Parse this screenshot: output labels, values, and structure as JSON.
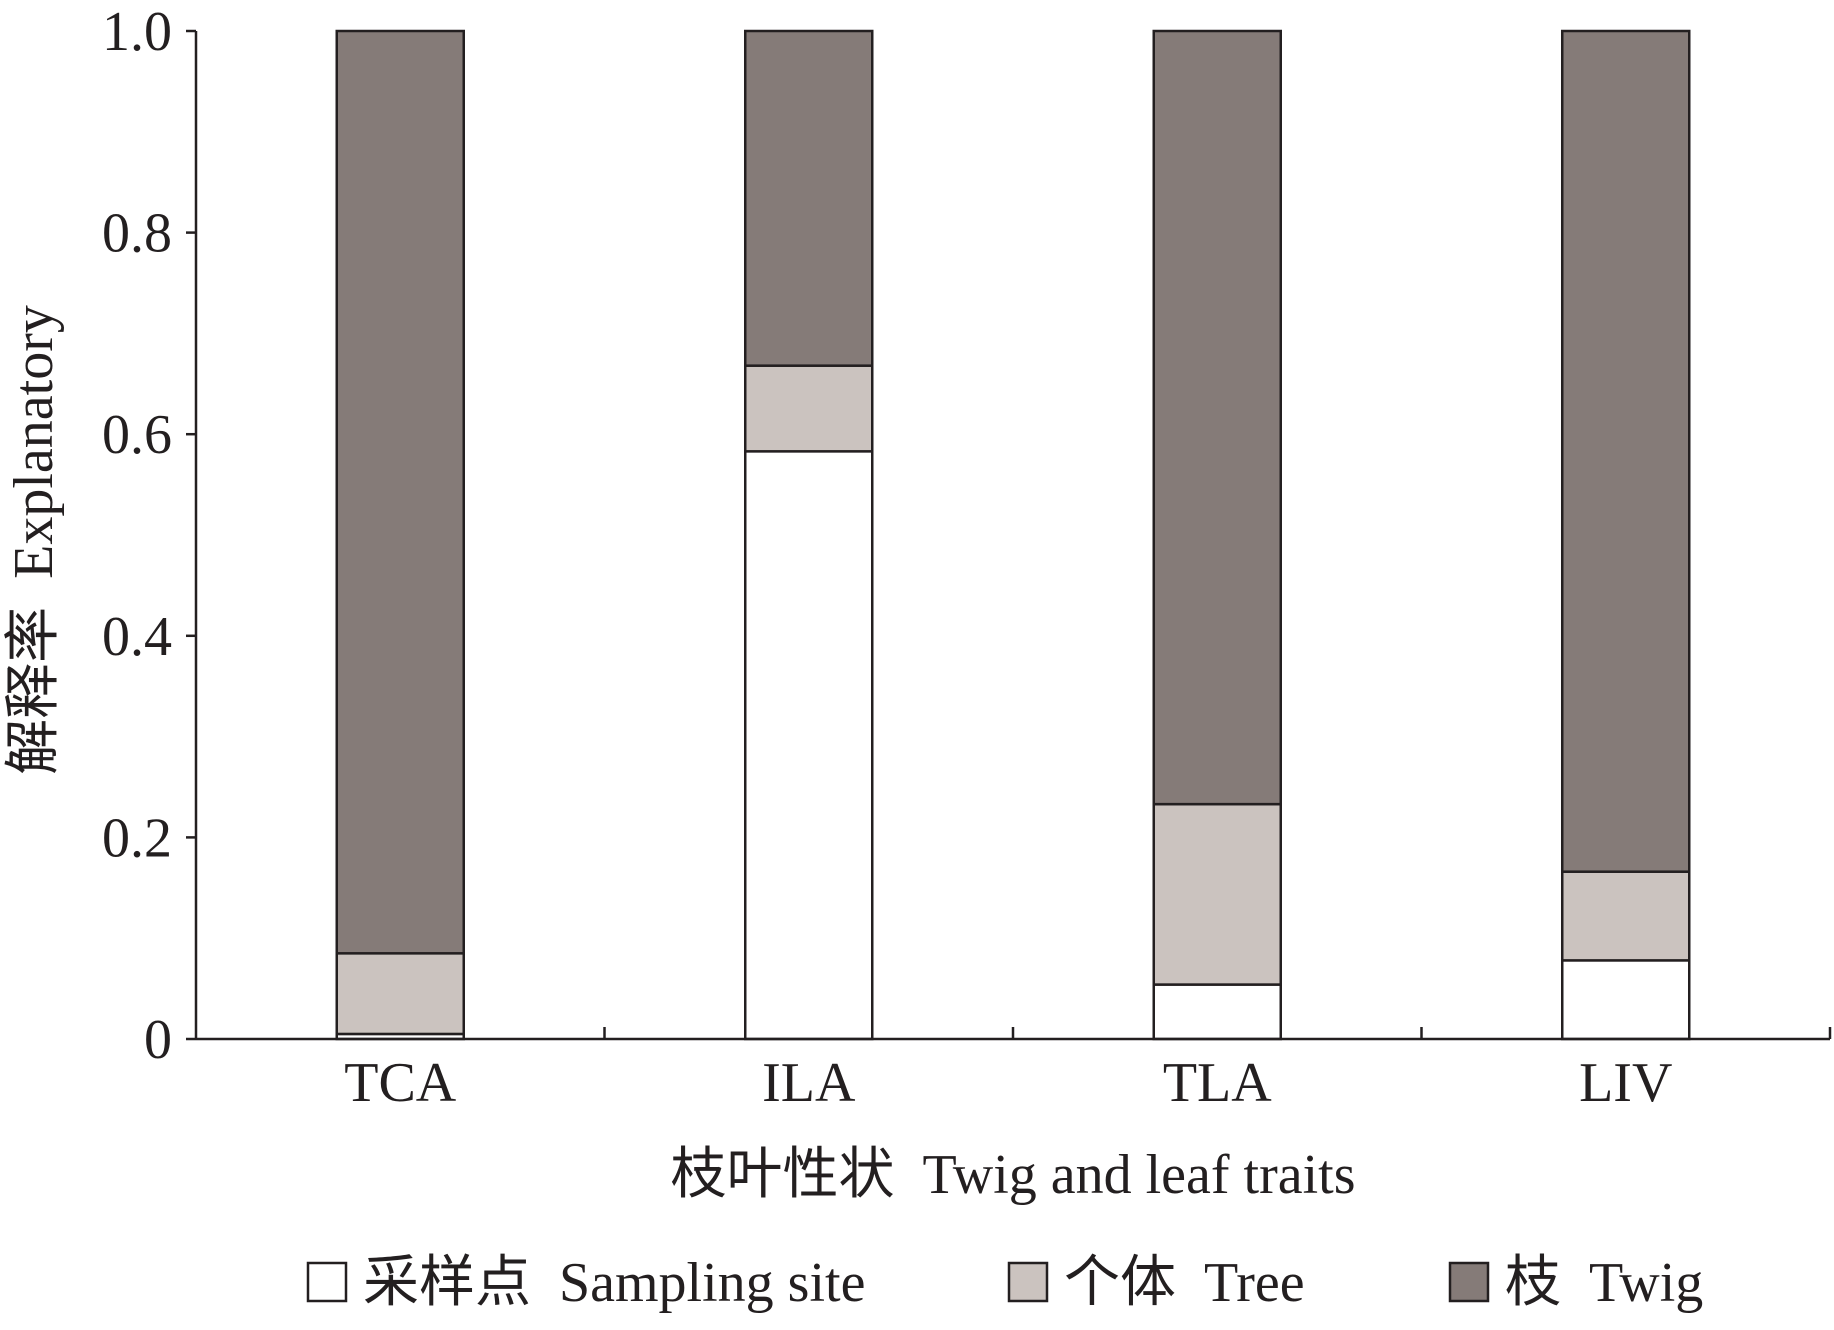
{
  "chart_data": {
    "type": "bar",
    "stacked": true,
    "categories": [
      "TCA",
      "ILA",
      "TLA",
      "LIV"
    ],
    "series": [
      {
        "name": "采样点  Sampling site",
        "values": [
          0.005,
          0.583,
          0.054,
          0.078
        ],
        "color": "#ffffff"
      },
      {
        "name": "个体  Tree",
        "values": [
          0.08,
          0.085,
          0.179,
          0.088
        ],
        "color": "#cbc3bf"
      },
      {
        "name": "枝  Twig",
        "values": [
          0.915,
          0.332,
          0.767,
          0.834
        ],
        "color": "#857b78"
      }
    ],
    "xlabel": "枝叶性状  Twig and leaf traits",
    "ylabel": "解释率  Explanatory",
    "ylim": [
      0,
      1.0
    ],
    "yticks": [
      "0",
      "0.2",
      "0.4",
      "0.6",
      "0.8",
      "1.0"
    ],
    "grid": false,
    "legend_placement": "bottom",
    "axis_color": "#231f20"
  }
}
